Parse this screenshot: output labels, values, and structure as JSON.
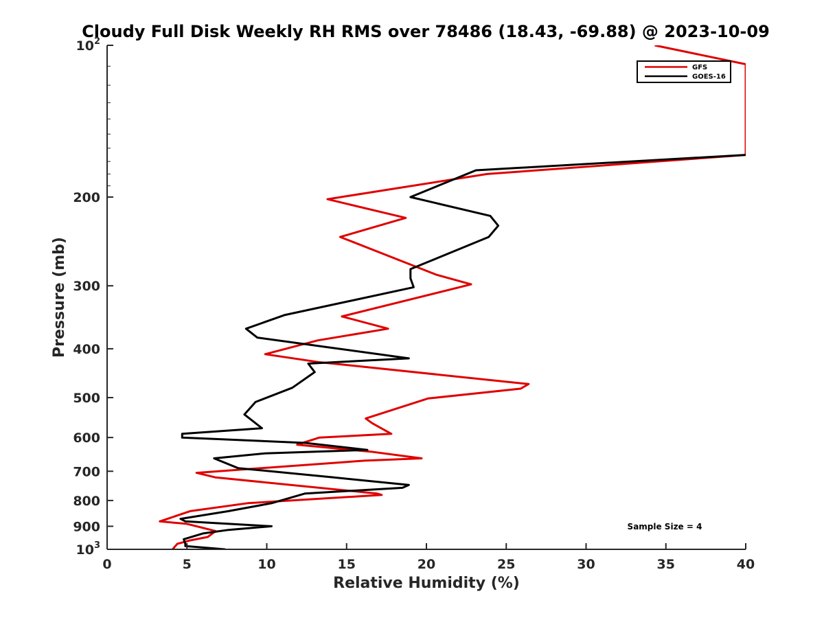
{
  "chart_data": {
    "type": "line",
    "title": "Cloudy Full Disk Weekly RH RMS over 78486 (18.43, -69.88) @ 2023-10-09",
    "xlabel": "Relative Humidity (%)",
    "ylabel": "Pressure (mb)",
    "xlim": [
      0,
      40
    ],
    "ylim": [
      100,
      1000
    ],
    "y_scale": "log",
    "y_reversed": true,
    "x_ticks": [
      0,
      5,
      10,
      15,
      20,
      25,
      30,
      35,
      40
    ],
    "x_tick_labels": [
      "0",
      "5",
      "10",
      "15",
      "20",
      "25",
      "30",
      "35",
      "40"
    ],
    "y_ticks": [
      100,
      200,
      300,
      400,
      500,
      600,
      700,
      800,
      900,
      1000
    ],
    "y_tick_labels": [
      {
        "base": "10",
        "sup": "2"
      },
      {
        "base": "200",
        "sup": ""
      },
      {
        "base": "300",
        "sup": ""
      },
      {
        "base": "400",
        "sup": ""
      },
      {
        "base": "500",
        "sup": ""
      },
      {
        "base": "600",
        "sup": ""
      },
      {
        "base": "700",
        "sup": ""
      },
      {
        "base": "800",
        "sup": ""
      },
      {
        "base": "900",
        "sup": ""
      },
      {
        "base": "10",
        "sup": "3"
      }
    ],
    "grid": false,
    "legend_position": "top-right",
    "annotation": "Sample Size = 4",
    "series": [
      {
        "name": "GFS",
        "color": "#e00000",
        "points": [
          [
            34.3,
            100
          ],
          [
            40.0,
            109
          ],
          [
            40.0,
            165
          ],
          [
            23.8,
            180
          ],
          [
            13.8,
            202
          ],
          [
            18.7,
            220
          ],
          [
            14.6,
            240
          ],
          [
            20.6,
            285
          ],
          [
            22.8,
            298
          ],
          [
            14.7,
            345
          ],
          [
            17.6,
            365
          ],
          [
            13.2,
            385
          ],
          [
            9.9,
            410
          ],
          [
            13.2,
            425
          ],
          [
            26.4,
            470
          ],
          [
            25.9,
            480
          ],
          [
            20.1,
            502
          ],
          [
            16.2,
            550
          ],
          [
            16.6,
            562
          ],
          [
            17.8,
            590
          ],
          [
            13.3,
            600
          ],
          [
            11.9,
            620
          ],
          [
            16.5,
            640
          ],
          [
            19.7,
            660
          ],
          [
            16.1,
            667
          ],
          [
            5.6,
            705
          ],
          [
            6.8,
            720
          ],
          [
            16.9,
            775
          ],
          [
            17.2,
            780
          ],
          [
            8.8,
            810
          ],
          [
            5.2,
            840
          ],
          [
            3.3,
            880
          ],
          [
            5.0,
            890
          ],
          [
            6.8,
            920
          ],
          [
            6.3,
            945
          ],
          [
            5.2,
            960
          ],
          [
            4.4,
            975
          ],
          [
            4.1,
            1000
          ]
        ]
      },
      {
        "name": "GOES-16",
        "color": "#000000",
        "points": [
          [
            40.0,
            165
          ],
          [
            23.1,
            177
          ],
          [
            19.0,
            200
          ],
          [
            24.0,
            218
          ],
          [
            24.5,
            228
          ],
          [
            23.9,
            240
          ],
          [
            19.0,
            278
          ],
          [
            19.0,
            290
          ],
          [
            19.2,
            302
          ],
          [
            11.1,
            343
          ],
          [
            8.7,
            365
          ],
          [
            9.4,
            380
          ],
          [
            18.9,
            418
          ],
          [
            12.6,
            428
          ],
          [
            13.0,
            445
          ],
          [
            11.6,
            478
          ],
          [
            9.3,
            510
          ],
          [
            8.6,
            540
          ],
          [
            9.7,
            575
          ],
          [
            4.7,
            590
          ],
          [
            4.7,
            600
          ],
          [
            12.4,
            615
          ],
          [
            16.3,
            635
          ],
          [
            9.9,
            645
          ],
          [
            6.7,
            660
          ],
          [
            8.2,
            690
          ],
          [
            14.2,
            720
          ],
          [
            18.9,
            745
          ],
          [
            18.5,
            755
          ],
          [
            12.4,
            775
          ],
          [
            10.3,
            810
          ],
          [
            7.6,
            840
          ],
          [
            4.6,
            870
          ],
          [
            4.9,
            880
          ],
          [
            10.3,
            900
          ],
          [
            7.6,
            915
          ],
          [
            6.0,
            930
          ],
          [
            4.8,
            955
          ],
          [
            4.9,
            975
          ],
          [
            4.9,
            985
          ],
          [
            7.4,
            1000
          ]
        ]
      }
    ]
  }
}
